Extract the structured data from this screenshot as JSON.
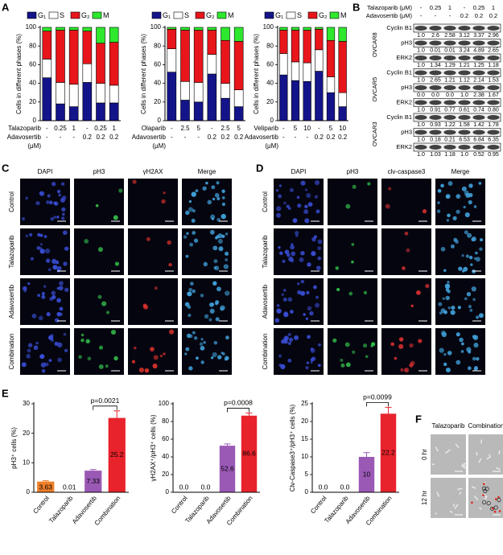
{
  "panel_labels": [
    "A",
    "B",
    "C",
    "D",
    "E",
    "F"
  ],
  "panel_a": {
    "charts": [
      {
        "type": "stacked_bar",
        "ylabel": "Cells in different phases (%)",
        "ylim": [
          0,
          100
        ],
        "yticks": [
          0,
          20,
          40,
          60,
          80,
          100
        ],
        "treatments": [
          {
            "name": "Talazoparib",
            "values": [
              "-",
              "0.25",
              "1",
              "-",
              "0.25",
              "1"
            ]
          },
          {
            "name": "Adavosertib",
            "values": [
              "-",
              "-",
              "-",
              "0.2",
              "0.2",
              "0.2"
            ]
          }
        ],
        "unit": "(μM)",
        "series": [
          {
            "name": "G₁",
            "color": "#14148a",
            "values": [
              46,
              18,
              15,
              41,
              19,
              19
            ]
          },
          {
            "name": "S",
            "color": "#ffffff",
            "values": [
              20,
              23,
              24,
              20,
              21,
              19
            ]
          },
          {
            "name": "G₂",
            "color": "#e8151b",
            "values": [
              30,
              56,
              58,
              35,
              43,
              46
            ]
          },
          {
            "name": "M",
            "color": "#2ee82e",
            "values": [
              4,
              3,
              3,
              4,
              17,
              16
            ]
          }
        ]
      },
      {
        "type": "stacked_bar",
        "ylabel": "Cells in different phases (%)",
        "ylim": [
          0,
          100
        ],
        "yticks": [
          0,
          20,
          40,
          60,
          80,
          100
        ],
        "treatments": [
          {
            "name": "Olaparib",
            "values": [
              "-",
              "2.5",
              "5",
              "-",
              "2.5",
              "5"
            ]
          },
          {
            "name": "Adavosertib",
            "values": [
              "-",
              "-",
              "-",
              "0.2",
              "0.2",
              "0.2"
            ]
          }
        ],
        "unit": "(μM)",
        "series": [
          {
            "name": "G₁",
            "color": "#14148a",
            "values": [
              52,
              22,
              20,
              50,
              24,
              15
            ]
          },
          {
            "name": "S",
            "color": "#ffffff",
            "values": [
              25,
              20,
              21,
              21,
              16,
              18
            ]
          },
          {
            "name": "G₂",
            "color": "#e8151b",
            "values": [
              21,
              55,
              56,
              26,
              46,
              52
            ]
          },
          {
            "name": "M",
            "color": "#2ee82e",
            "values": [
              2,
              3,
              3,
              3,
              14,
              15
            ]
          }
        ]
      },
      {
        "type": "stacked_bar",
        "ylabel": "Cells in different phases (%)",
        "ylim": [
          0,
          100
        ],
        "yticks": [
          0,
          20,
          40,
          60,
          80,
          100
        ],
        "treatments": [
          {
            "name": "Veliparib",
            "values": [
              "-",
              "5",
              "10",
              "-",
              "5",
              "10"
            ]
          },
          {
            "name": "Adavosertib",
            "values": [
              "-",
              "-",
              "-",
              "0.2",
              "0.2",
              "0.2"
            ]
          }
        ],
        "unit": "(μM)",
        "series": [
          {
            "name": "G₁",
            "color": "#14148a",
            "values": [
              49,
              43,
              42,
              53,
              30,
              15
            ]
          },
          {
            "name": "S",
            "color": "#ffffff",
            "values": [
              23,
              20,
              20,
              23,
              17,
              15
            ]
          },
          {
            "name": "G₂",
            "color": "#e8151b",
            "values": [
              25,
              34,
              35,
              22,
              39,
              55
            ]
          },
          {
            "name": "M",
            "color": "#2ee82e",
            "values": [
              3,
              3,
              3,
              2,
              14,
              15
            ]
          }
        ]
      }
    ]
  },
  "panel_b": {
    "header": [
      {
        "label": "Talazoparib (μM)",
        "values": [
          "-",
          "0.25",
          "1",
          "-",
          "0.25",
          "1"
        ]
      },
      {
        "label": "Adavosertib (μM)",
        "values": [
          "-",
          "-",
          "-",
          "0.2",
          "0.2",
          "0.2"
        ]
      }
    ],
    "cell_lines": [
      {
        "name": "OVCAR8",
        "rows": [
          {
            "protein": "Cyclin B1",
            "values": [
              "1.0",
              "2.6",
              "2.58",
              "3.12",
              "3.37",
              "2.96"
            ]
          },
          {
            "protein": "pH3",
            "values": [
              "1.0",
              "0.01",
              "0.01",
              "3.24",
              "4.89",
              "2.65"
            ]
          },
          {
            "protein": "ERK2",
            "values": [
              "1.0",
              "1.34",
              "1.29",
              "1.21",
              "1.25",
              "1.18"
            ]
          }
        ]
      },
      {
        "name": "OVCAR5",
        "rows": [
          {
            "protein": "Cyclin B1",
            "values": [
              "1.0",
              "2.65",
              "1.21",
              "1.12",
              "2.14",
              "1.53"
            ]
          },
          {
            "protein": "pH3",
            "values": [
              "0.0",
              "0.0",
              "0.0",
              "1.0",
              "2.38",
              "1.67"
            ]
          },
          {
            "protein": "ERK2",
            "values": [
              "1.0",
              "0.91",
              "0.77",
              "0.61",
              "0.74",
              "0.80"
            ]
          }
        ]
      },
      {
        "name": "OVCAR3",
        "rows": [
          {
            "protein": "Cyclin B1",
            "values": [
              "1.0",
              "0.93",
              "1.22",
              "1.58",
              "1.42",
              "1.78"
            ]
          },
          {
            "protein": "pH3",
            "values": [
              "1.0",
              "0.18",
              "0.21",
              "6.53",
              "6.84",
              "6.35"
            ]
          },
          {
            "protein": "ERK2",
            "values": [
              "1.0",
              "1.03",
              "1.18",
              "1.0",
              "0.52",
              "0.95"
            ]
          }
        ]
      }
    ]
  },
  "panel_c": {
    "columns": [
      "DAPI",
      "pH3",
      "γH2AX",
      "Merge"
    ],
    "rows": [
      "Control",
      "Talazoparib",
      "Adavosertib",
      "Combination"
    ]
  },
  "panel_d": {
    "columns": [
      "DAPI",
      "pH3",
      "clv-caspase3",
      "Merge"
    ],
    "rows": [
      "Control",
      "Talazoparib",
      "Adavosertib",
      "Combination"
    ]
  },
  "panel_e": {
    "charts": [
      {
        "type": "bar",
        "ylabel": "pH3⁺ cells (%)",
        "categories": [
          "Control",
          "Talazoparib",
          "Adavosertib",
          "Combination"
        ],
        "values": [
          3.63,
          0.01,
          7.33,
          25.2
        ],
        "errors": [
          0.3,
          0,
          0.4,
          2.4
        ],
        "colors": [
          "#f07f2a",
          "#9a9a9a",
          "#9b59b6",
          "#e8232c"
        ],
        "ylim": [
          0,
          30
        ],
        "yticks": [
          0,
          10,
          20,
          30
        ],
        "annotation": "p=0.0021"
      },
      {
        "type": "bar",
        "ylabel": "γH2AX⁺/pH3⁺ cells (%)",
        "categories": [
          "Control",
          "Talazoparib",
          "Adavosertib",
          "Combination"
        ],
        "values": [
          0,
          0,
          52.6,
          86.6
        ],
        "value_labels": [
          "0.0",
          "0.0",
          "52.6",
          "86.6"
        ],
        "errors": [
          0,
          0,
          2,
          3
        ],
        "colors": [
          "#f07f2a",
          "#9a9a9a",
          "#9b59b6",
          "#e8232c"
        ],
        "ylim": [
          0,
          100
        ],
        "yticks": [
          0,
          20,
          40,
          60,
          80,
          100
        ],
        "annotation": "p=0.0008"
      },
      {
        "type": "bar",
        "ylabel": "Clv-Caspase3⁺/pH3⁺ cells (%)",
        "categories": [
          "Control",
          "Talazoparib",
          "Adavosertib",
          "Combination"
        ],
        "values": [
          0,
          0,
          10,
          22.2
        ],
        "value_labels": [
          "0.0",
          "0.0",
          "10",
          "22.2"
        ],
        "errors": [
          0,
          0,
          1.2,
          1.8
        ],
        "colors": [
          "#f07f2a",
          "#9a9a9a",
          "#9b59b6",
          "#e8232c"
        ],
        "ylim": [
          0,
          25
        ],
        "yticks": [
          0,
          5,
          10,
          15,
          20,
          25
        ],
        "annotation": "p=0.0099"
      }
    ]
  },
  "panel_f": {
    "columns": [
      "Talazoparib",
      "Combination"
    ],
    "rows": [
      "0 hr",
      "12 hr"
    ]
  }
}
